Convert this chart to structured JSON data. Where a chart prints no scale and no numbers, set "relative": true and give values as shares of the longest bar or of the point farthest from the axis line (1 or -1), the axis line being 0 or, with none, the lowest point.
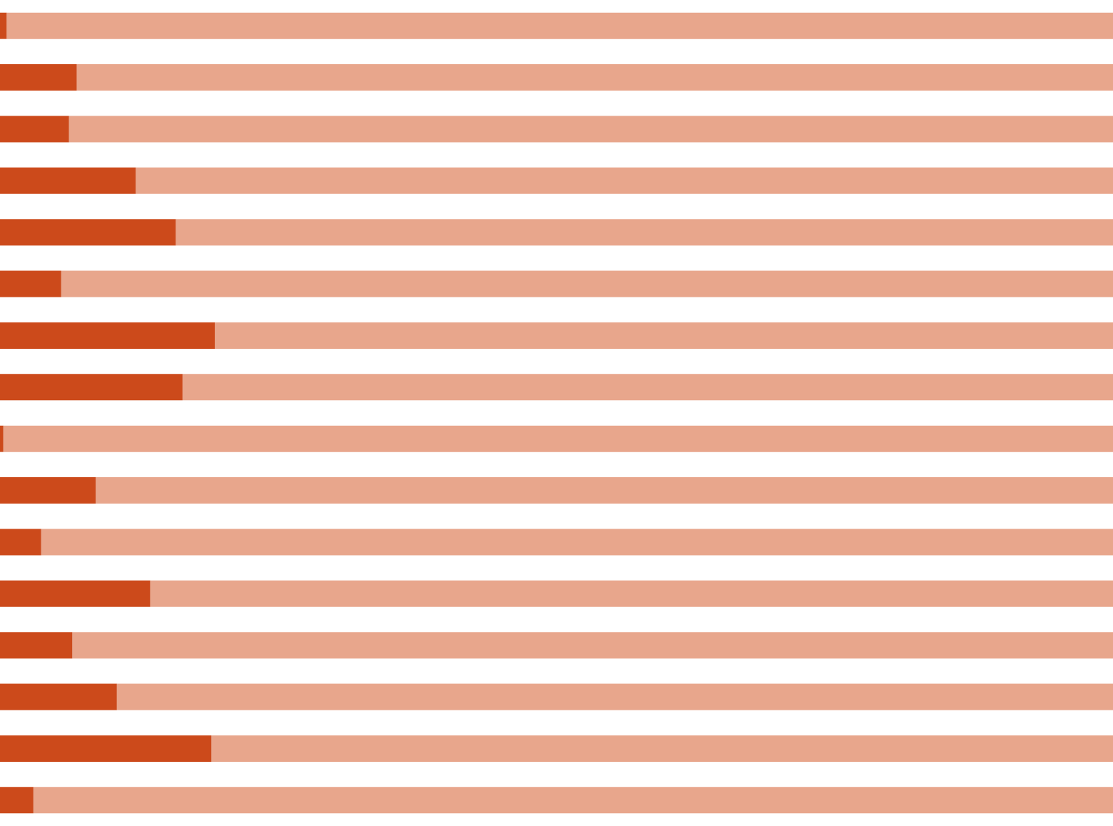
{
  "chart_data": {
    "type": "bar",
    "orientation": "horizontal",
    "stacked": true,
    "relative": true,
    "categories": [
      null,
      null,
      null,
      null,
      null,
      null,
      null,
      null,
      null,
      null,
      null,
      null,
      null,
      null,
      null,
      null
    ],
    "series": [
      {
        "color": "#cc4a1b",
        "values": [
          0.006,
          0.069,
          0.062,
          0.122,
          0.158,
          0.055,
          0.193,
          0.164,
          0.003,
          0.086,
          0.037,
          0.135,
          0.065,
          0.105,
          0.19,
          0.03
        ]
      },
      {
        "color": "#e8a68c",
        "values": [
          0.994,
          0.931,
          0.938,
          0.878,
          0.842,
          0.945,
          0.807,
          0.836,
          0.997,
          0.914,
          0.963,
          0.865,
          0.935,
          0.895,
          0.81,
          0.97
        ]
      }
    ]
  }
}
